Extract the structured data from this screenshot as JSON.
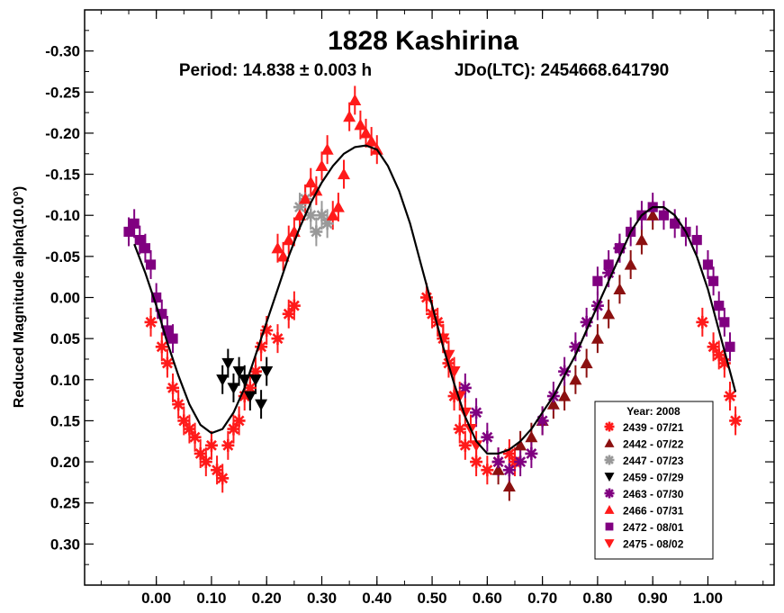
{
  "chart_data": {
    "type": "scatter",
    "title": "1828 Kashirina",
    "subtitle_period": "Period: 14.838 ± 0.003 h",
    "subtitle_epoch": "JDo(LTC): 2454668.641790",
    "ylabel": "Reduced Magnitude alpha(10.0°)",
    "xlim": [
      -0.13,
      1.12
    ],
    "ylim": [
      -0.35,
      0.35
    ],
    "y_inverted": true,
    "x_ticks": [
      "0.00",
      "0.10",
      "0.20",
      "0.30",
      "0.40",
      "0.50",
      "0.60",
      "0.70",
      "0.80",
      "0.90",
      "1.00"
    ],
    "y_ticks": [
      "-0.30",
      "-0.25",
      "-0.20",
      "-0.15",
      "-0.10",
      "-0.05",
      "0.00",
      "0.05",
      "0.10",
      "0.15",
      "0.20",
      "0.25",
      "0.30"
    ],
    "legend_title": "Year: 2008",
    "legend_placement": "bottom-right",
    "fit_curve": {
      "name": "fourier fit",
      "color": "#000000",
      "x": [
        -0.04,
        -0.02,
        0.0,
        0.02,
        0.04,
        0.06,
        0.08,
        0.1,
        0.12,
        0.14,
        0.16,
        0.18,
        0.2,
        0.22,
        0.24,
        0.26,
        0.28,
        0.3,
        0.32,
        0.34,
        0.36,
        0.38,
        0.4,
        0.42,
        0.44,
        0.46,
        0.48,
        0.5,
        0.52,
        0.54,
        0.56,
        0.58,
        0.6,
        0.62,
        0.64,
        0.66,
        0.68,
        0.7,
        0.72,
        0.74,
        0.76,
        0.78,
        0.8,
        0.82,
        0.84,
        0.86,
        0.88,
        0.9,
        0.92,
        0.94,
        0.96,
        0.98,
        1.0,
        1.02,
        1.04,
        1.05
      ],
      "y": [
        -0.065,
        -0.03,
        0.01,
        0.055,
        0.095,
        0.13,
        0.155,
        0.165,
        0.16,
        0.14,
        0.11,
        0.07,
        0.03,
        -0.01,
        -0.05,
        -0.085,
        -0.115,
        -0.14,
        -0.16,
        -0.175,
        -0.183,
        -0.185,
        -0.18,
        -0.16,
        -0.13,
        -0.09,
        -0.04,
        0.01,
        0.06,
        0.105,
        0.145,
        0.175,
        0.19,
        0.19,
        0.185,
        0.175,
        0.16,
        0.14,
        0.12,
        0.095,
        0.07,
        0.04,
        0.01,
        -0.02,
        -0.05,
        -0.08,
        -0.1,
        -0.11,
        -0.11,
        -0.1,
        -0.08,
        -0.05,
        -0.01,
        0.04,
        0.09,
        0.115
      ]
    },
    "series": [
      {
        "name": "2439 - 07/21",
        "marker": "asterisk",
        "color": "#ff1a1a",
        "x": [
          -0.01,
          0.01,
          0.02,
          0.03,
          0.04,
          0.05,
          0.06,
          0.07,
          0.08,
          0.09,
          0.1,
          0.11,
          0.12,
          0.13,
          0.14,
          0.15,
          0.16,
          0.17,
          0.18,
          0.19,
          0.2,
          0.22,
          0.24,
          0.25,
          0.49,
          0.5,
          0.51,
          0.52,
          0.53,
          0.54,
          0.55,
          0.56,
          0.58,
          0.6,
          0.62,
          0.64,
          0.65,
          0.99,
          1.01,
          1.02,
          1.03,
          1.04,
          1.05
        ],
        "y": [
          0.03,
          0.06,
          0.08,
          0.11,
          0.13,
          0.15,
          0.16,
          0.17,
          0.19,
          0.2,
          0.18,
          0.21,
          0.22,
          0.18,
          0.16,
          0.15,
          0.12,
          0.11,
          0.09,
          0.06,
          0.04,
          0.05,
          0.02,
          0.01,
          0.0,
          0.02,
          0.03,
          0.05,
          0.08,
          0.12,
          0.16,
          0.18,
          0.2,
          0.21,
          0.2,
          0.19,
          0.2,
          0.03,
          0.06,
          0.07,
          0.08,
          0.12,
          0.15
        ]
      },
      {
        "name": "2442 - 07/22",
        "marker": "triangle-up",
        "color": "#8b1010",
        "x": [
          0.62,
          0.64,
          0.66,
          0.68,
          0.7,
          0.72,
          0.74,
          0.76,
          0.78,
          0.8,
          0.82,
          0.84,
          0.86,
          0.88,
          0.9
        ],
        "y": [
          0.21,
          0.23,
          0.18,
          0.17,
          0.15,
          0.13,
          0.12,
          0.1,
          0.08,
          0.05,
          0.02,
          -0.01,
          -0.04,
          -0.07,
          -0.1
        ]
      },
      {
        "name": "2447 - 07/23",
        "marker": "asterisk",
        "color": "#999999",
        "x": [
          0.26,
          0.27,
          0.28,
          0.29,
          0.3,
          0.31
        ],
        "y": [
          -0.11,
          -0.12,
          -0.1,
          -0.08,
          -0.1,
          -0.09
        ]
      },
      {
        "name": "2459 - 07/29",
        "marker": "triangle-down",
        "color": "#000000",
        "x": [
          0.12,
          0.13,
          0.14,
          0.15,
          0.16,
          0.17,
          0.18,
          0.19,
          0.2
        ],
        "y": [
          0.1,
          0.08,
          0.11,
          0.09,
          0.1,
          0.12,
          0.1,
          0.13,
          0.09
        ]
      },
      {
        "name": "2463 - 07/30",
        "marker": "asterisk",
        "color": "#800080",
        "x": [
          0.56,
          0.58,
          0.6,
          0.62,
          0.64,
          0.66,
          0.68,
          0.7,
          0.72,
          0.74,
          0.76,
          0.78,
          0.8,
          0.82,
          0.84
        ],
        "y": [
          0.11,
          0.14,
          0.17,
          0.2,
          0.21,
          0.2,
          0.19,
          0.15,
          0.12,
          0.09,
          0.06,
          0.03,
          0.01,
          -0.03,
          -0.06
        ]
      },
      {
        "name": "2466 - 07/31",
        "marker": "triangle-up",
        "color": "#ff1a1a",
        "x": [
          0.22,
          0.23,
          0.24,
          0.25,
          0.26,
          0.27,
          0.28,
          0.29,
          0.3,
          0.31,
          0.32,
          0.33,
          0.34,
          0.35,
          0.36,
          0.37,
          0.38,
          0.39,
          0.4
        ],
        "y": [
          -0.06,
          -0.05,
          -0.07,
          -0.08,
          -0.1,
          -0.12,
          -0.14,
          -0.13,
          -0.16,
          -0.18,
          -0.1,
          -0.11,
          -0.15,
          -0.22,
          -0.24,
          -0.21,
          -0.2,
          -0.19,
          -0.18
        ]
      },
      {
        "name": "2472 - 08/01",
        "marker": "square",
        "color": "#800080",
        "x": [
          -0.05,
          -0.04,
          -0.03,
          -0.02,
          -0.01,
          0.0,
          0.01,
          0.02,
          0.03,
          0.8,
          0.82,
          0.84,
          0.86,
          0.88,
          0.9,
          0.92,
          0.94,
          0.96,
          0.98,
          1.0,
          1.01,
          1.02,
          1.03,
          1.04
        ],
        "y": [
          -0.08,
          -0.09,
          -0.07,
          -0.06,
          -0.04,
          0.0,
          0.02,
          0.04,
          0.05,
          -0.02,
          -0.04,
          -0.06,
          -0.08,
          -0.1,
          -0.11,
          -0.1,
          -0.09,
          -0.08,
          -0.07,
          -0.04,
          -0.02,
          0.01,
          0.03,
          0.06
        ]
      },
      {
        "name": "2475 - 08/02",
        "marker": "triangle-down",
        "color": "#ff1a1a",
        "x": [
          0.52,
          0.53,
          0.54,
          0.55,
          0.56,
          0.57,
          0.58
        ],
        "y": [
          0.05,
          0.07,
          0.09,
          0.12,
          0.14,
          0.16,
          0.18
        ]
      }
    ]
  }
}
